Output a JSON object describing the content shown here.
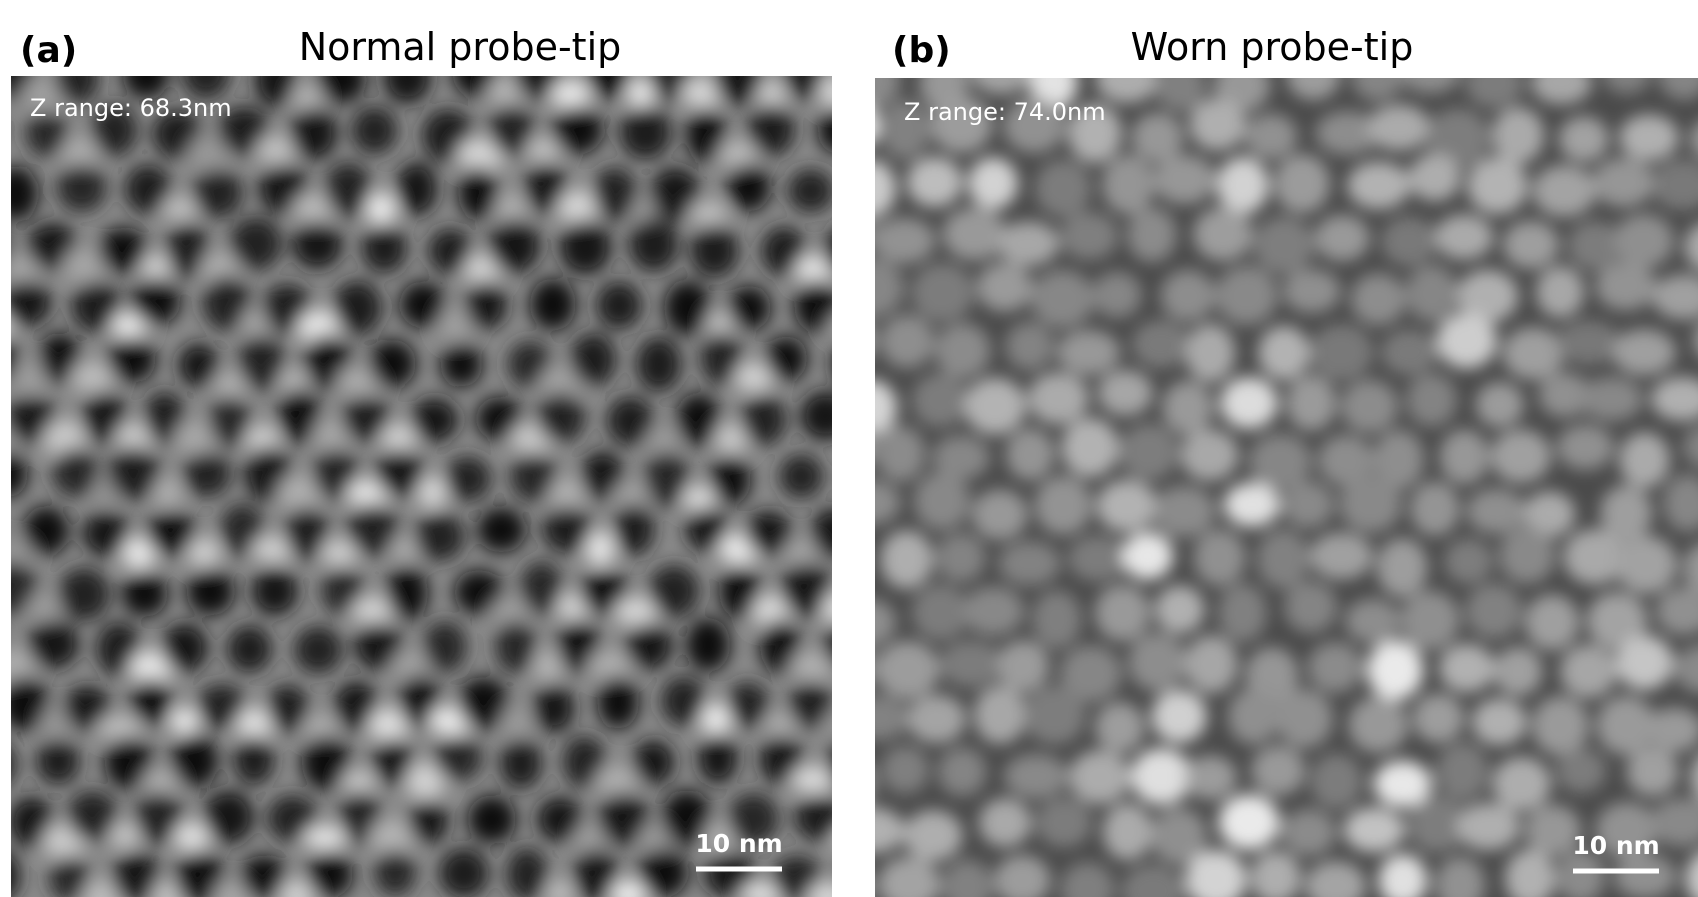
{
  "panels": [
    {
      "label": "(a)",
      "title": "Normal probe-tip",
      "z_range": "Z range: 68.3nm",
      "scale_bar": "10 nm"
    },
    {
      "label": "(b)",
      "title": "Worn probe-tip",
      "z_range": "Z range: 74.0nm",
      "scale_bar": "10 nm"
    }
  ]
}
